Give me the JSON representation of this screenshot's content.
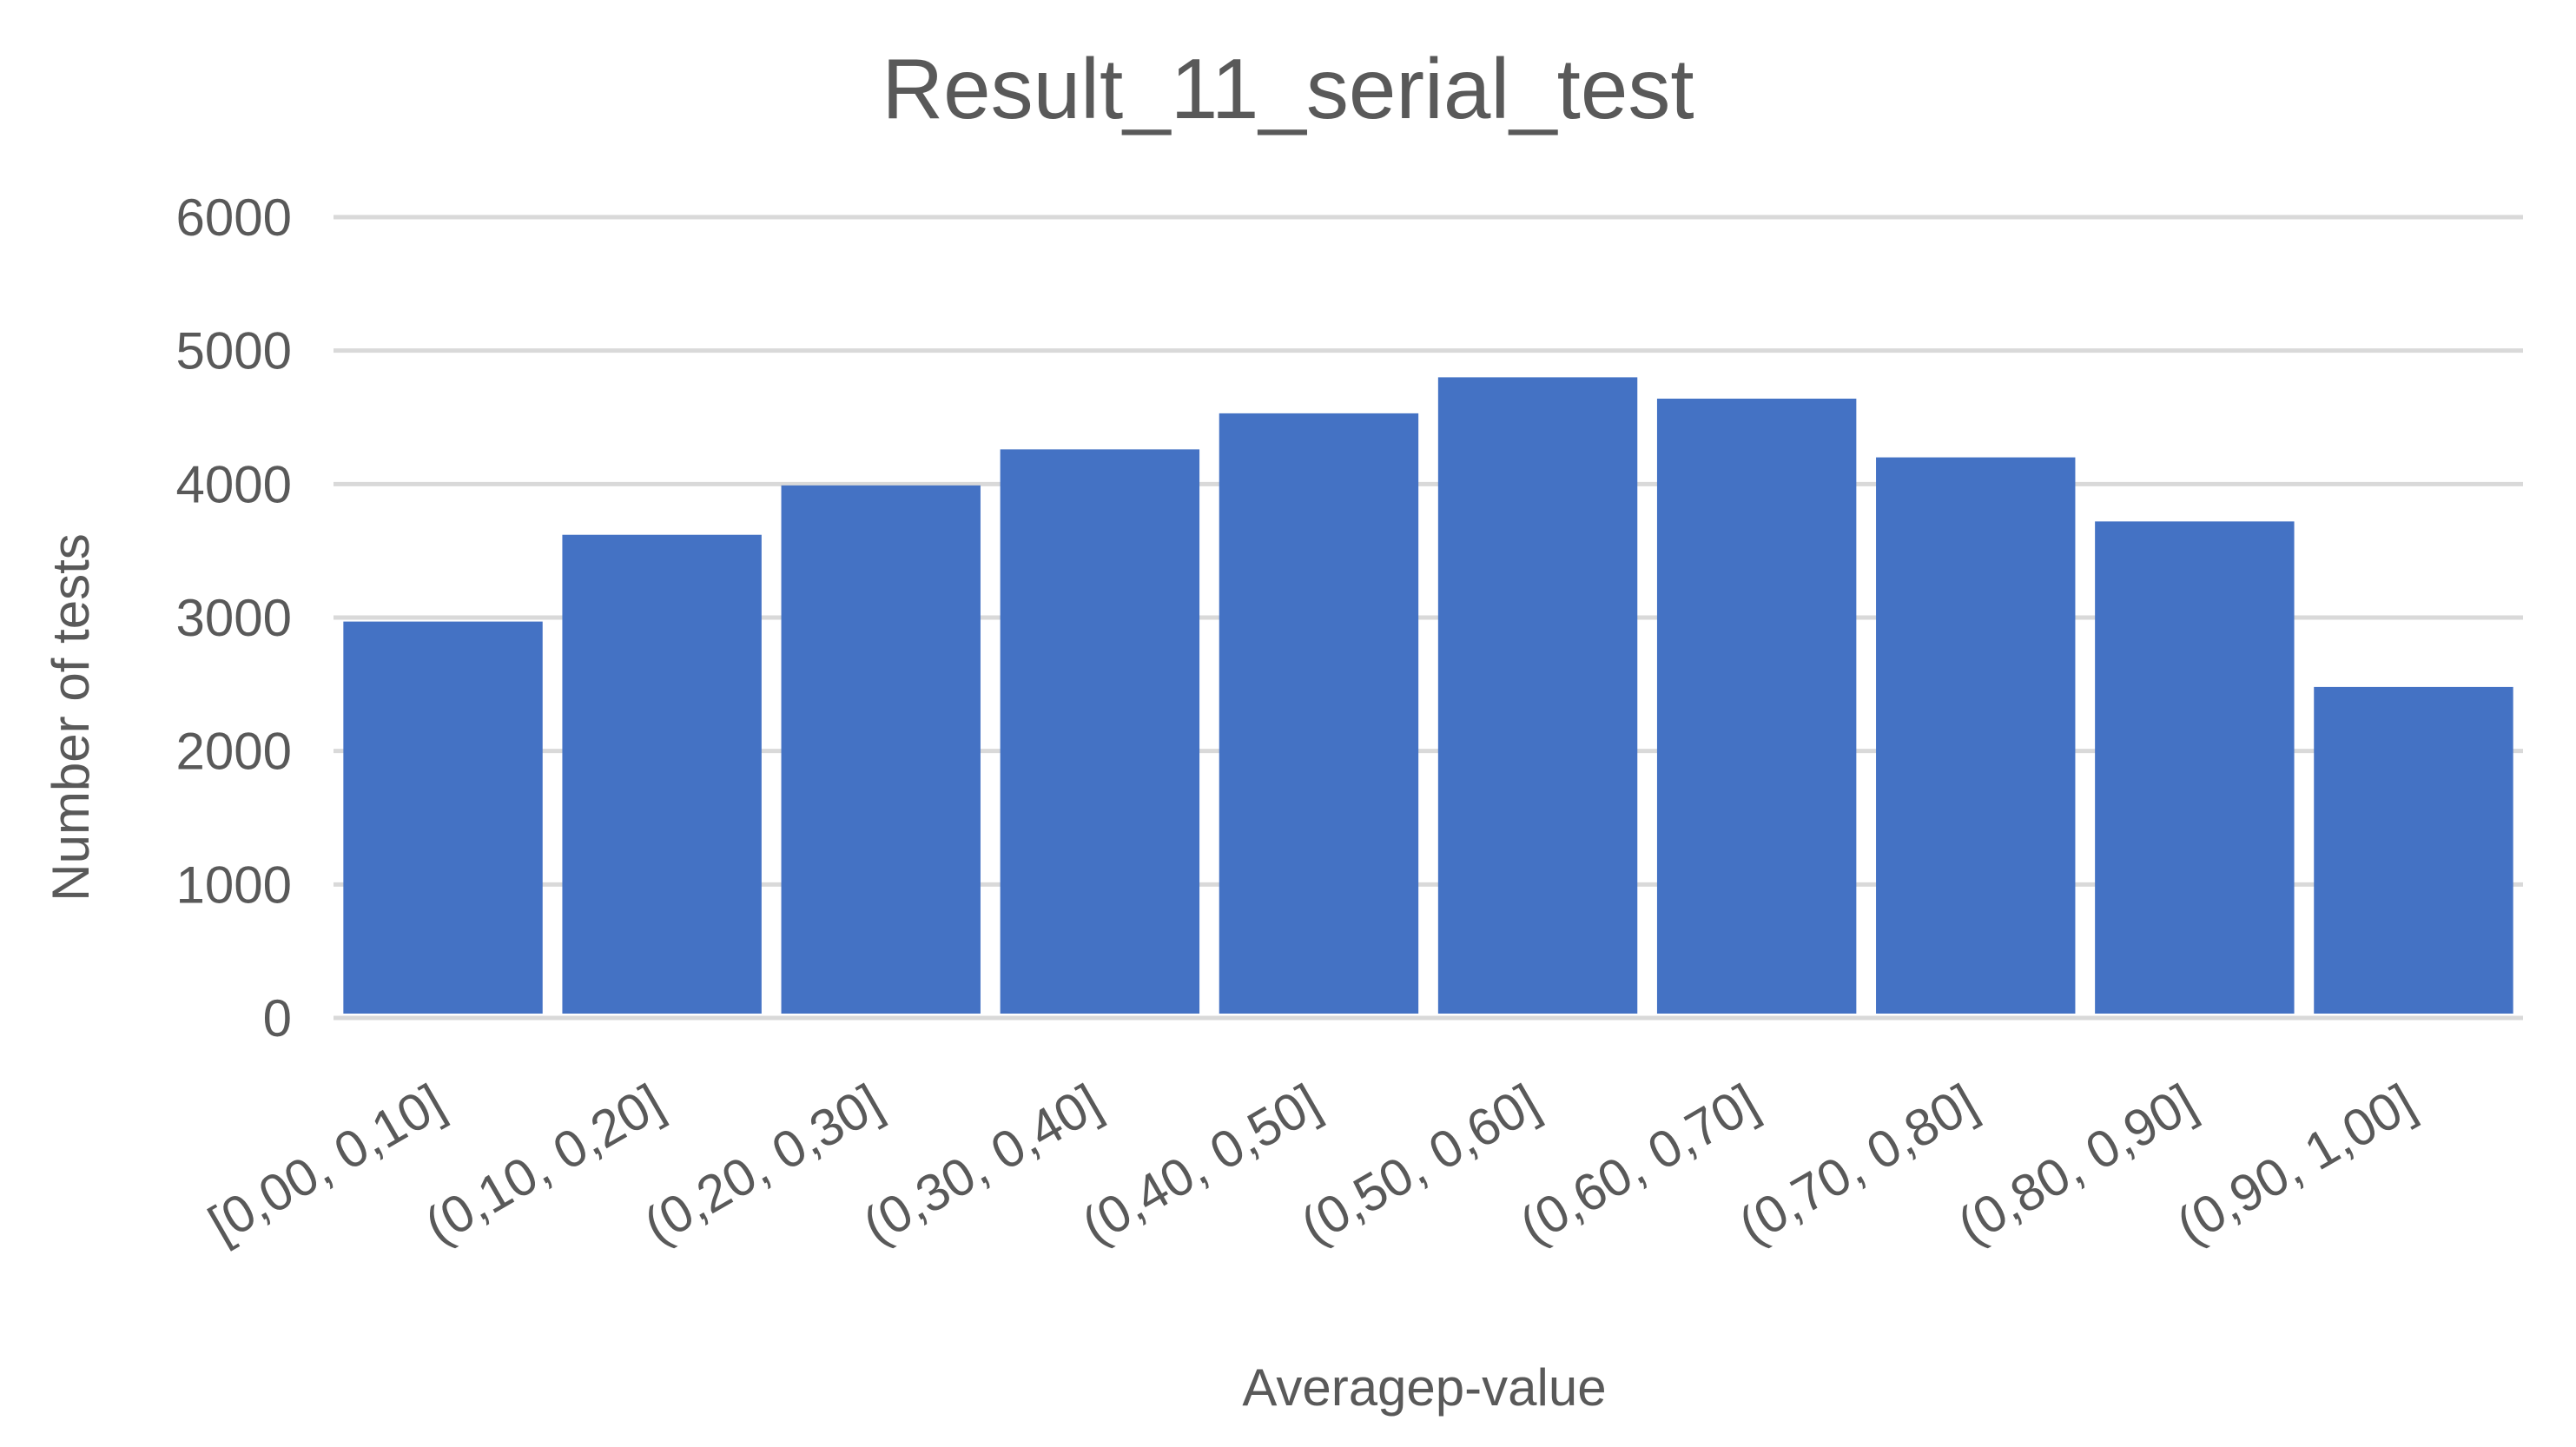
{
  "chart_data": {
    "type": "bar",
    "title": "Result_11_serial_test",
    "xlabel": "Averagep-value",
    "ylabel": "Number of tests",
    "categories": [
      "[0,00, 0,10]",
      "(0,10, 0,20]",
      "(0,20, 0,30]",
      "(0,30, 0,40]",
      "(0,40, 0,50]",
      "(0,50, 0,60]",
      "(0,60, 0,70]",
      "(0,70, 0,80]",
      "(0,80, 0,90]",
      "(0,90, 1,00]"
    ],
    "values": [
      2970,
      3620,
      3990,
      4260,
      4530,
      4800,
      4640,
      4200,
      3720,
      2480
    ],
    "ylim": [
      0,
      6000
    ],
    "yticks": [
      0,
      1000,
      2000,
      3000,
      4000,
      5000,
      6000
    ],
    "grid": true,
    "legend": "none",
    "colors": {
      "bar": "#4472c4",
      "grid": "#d9d9d9",
      "text": "#595959"
    }
  }
}
